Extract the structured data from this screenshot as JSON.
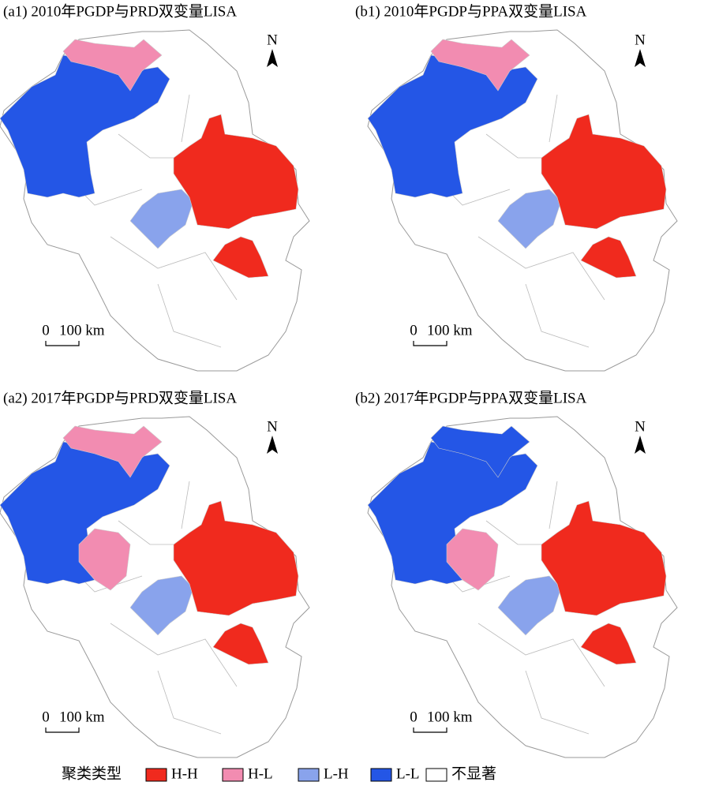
{
  "panels": [
    {
      "title": "(a1) 2010年PGDP与PRD双变量LISA",
      "north": "N",
      "scale_zero": "0",
      "scale_label": "100 km"
    },
    {
      "title": "(b1) 2010年PGDP与PPA双变量LISA",
      "north": "N",
      "scale_zero": "0",
      "scale_label": "100 km"
    },
    {
      "title": "(a2) 2017年PGDP与PRD双变量LISA",
      "north": "N",
      "scale_zero": "0",
      "scale_label": "100 km"
    },
    {
      "title": "(b2) 2017年PGDP与PPA双变量LISA",
      "north": "N",
      "scale_zero": "0",
      "scale_label": "100 km"
    }
  ],
  "legend": {
    "title": "聚类类型",
    "items": [
      {
        "label": "H-H",
        "color": "#f02a1e"
      },
      {
        "label": "H-L",
        "color": "#f28cb1"
      },
      {
        "label": "L-H",
        "color": "#89a3ec"
      },
      {
        "label": "L-L",
        "color": "#2456e6"
      },
      {
        "label": "不显著",
        "color": "#ffffff"
      }
    ]
  }
}
